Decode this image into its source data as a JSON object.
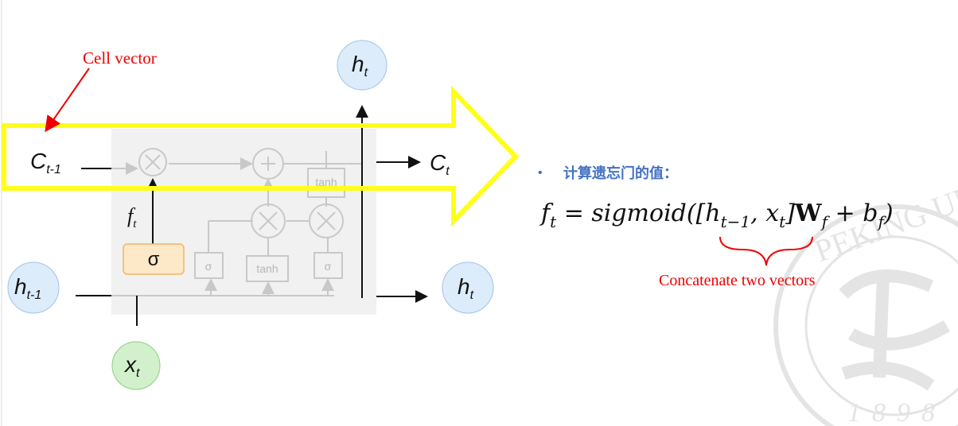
{
  "annotation": "Cell vector",
  "nodes": [
    {
      "symbol": "h",
      "sub": "t"
    },
    {
      "symbol": "C",
      "sub": "t-1"
    },
    {
      "symbol": "C",
      "sub": "t"
    },
    {
      "symbol": "h",
      "sub": "t-1"
    },
    {
      "symbol": "h",
      "sub": "t"
    },
    {
      "symbol": "x",
      "sub": "t"
    },
    {
      "symbol": "f",
      "sub": "t"
    }
  ],
  "gates": [
    "σ",
    "σ",
    "tanh",
    "σ",
    "tanh"
  ],
  "bullet": "计算遗忘门的值：",
  "formula": [
    {
      "text": "f",
      "sub": "t"
    },
    {
      "text": " = sigmoid(["
    },
    {
      "text": "h",
      "sub": "t−1"
    },
    {
      "text": ", "
    },
    {
      "text": "x",
      "sub": "t"
    },
    {
      "text": "]"
    },
    {
      "text": "W",
      "sub": "f"
    },
    {
      "text": " + "
    },
    {
      "text": "b",
      "sub": "f"
    },
    {
      "text": ")"
    }
  ],
  "brace_label": "Concatenate two vectors",
  "watermark": [
    "PEKING UNIV",
    "1898"
  ]
}
